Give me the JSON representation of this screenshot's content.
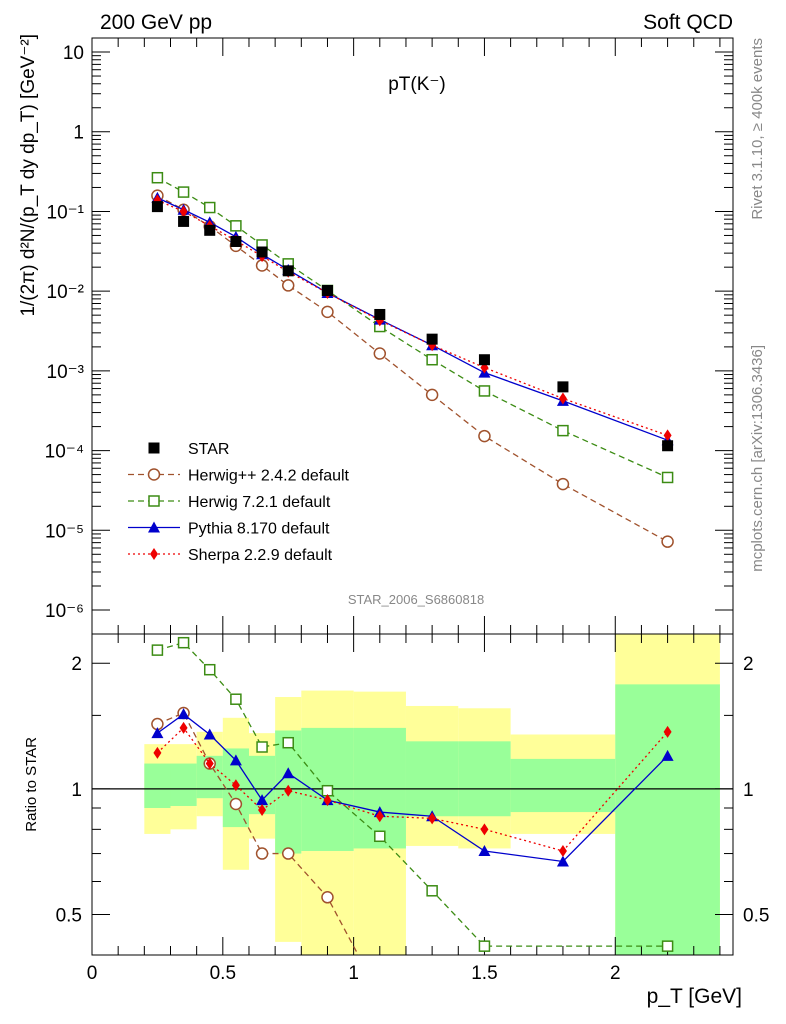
{
  "header": {
    "left": "200 GeV pp",
    "right": "Soft QCD",
    "side_top": "Rivet 3.1.10, ≥ 400k events",
    "side_bottom": "mcplots.cern.ch [arXiv:1306.3436]",
    "analysis": "STAR_2006_S6860818"
  },
  "colors": {
    "star": "#000000",
    "herwigpp": "#a0522d",
    "herwig7": "#3c8c14",
    "pythia": "#0000cc",
    "sherpa": "#ee0000",
    "band_yellow": "#ffff99",
    "band_green": "#99ff99"
  },
  "chart_data": [
    {
      "type": "line",
      "title": "pT(K⁻)",
      "yscale": "log",
      "ylabel": "1/(2π) d²N/(p_T dy dp_T) [GeV⁻²]",
      "xlim": [
        0,
        2.45
      ],
      "ylim": [
        5e-07,
        15
      ],
      "y_ticks": [
        "10⁻⁶",
        "10⁻⁵",
        "10⁻⁴",
        "10⁻³",
        "10⁻²",
        "10⁻¹",
        "1",
        "10"
      ],
      "legend_position": "bottom-left",
      "series": [
        {
          "key": "star",
          "name": "STAR",
          "style": "square-filled",
          "x": [
            0.25,
            0.35,
            0.45,
            0.55,
            0.65,
            0.75,
            0.9,
            1.1,
            1.3,
            1.5,
            1.8,
            2.2
          ],
          "y": [
            0.115,
            0.075,
            0.058,
            0.042,
            0.031,
            0.018,
            0.0102,
            0.0051,
            0.0025,
            0.00138,
            0.00063,
            0.000115
          ]
        },
        {
          "key": "herwigpp",
          "name": "Herwig++ 2.4.2 default",
          "style": "circle-open-dashed",
          "x": [
            0.25,
            0.35,
            0.45,
            0.55,
            0.65,
            0.75,
            0.9,
            1.1,
            1.3,
            1.5,
            1.8,
            2.2
          ],
          "y": [
            0.158,
            0.105,
            0.065,
            0.037,
            0.021,
            0.0118,
            0.0055,
            0.00165,
            0.0005,
            0.000152,
            3.8e-05,
            7.2e-06
          ]
        },
        {
          "key": "herwig7",
          "name": "Herwig 7.2.1 default",
          "style": "square-open-dashed",
          "x": [
            0.25,
            0.35,
            0.45,
            0.55,
            0.65,
            0.75,
            0.9,
            1.1,
            1.3,
            1.5,
            1.8,
            2.2
          ],
          "y": [
            0.265,
            0.175,
            0.112,
            0.066,
            0.038,
            0.022,
            0.0102,
            0.0036,
            0.00138,
            0.00056,
            0.000178,
            4.6e-05
          ]
        },
        {
          "key": "pythia",
          "name": "Pythia 8.170 default",
          "style": "triangle-filled-solid",
          "x": [
            0.25,
            0.35,
            0.45,
            0.55,
            0.65,
            0.75,
            0.9,
            1.1,
            1.3,
            1.5,
            1.8,
            2.2
          ],
          "y": [
            0.148,
            0.105,
            0.073,
            0.048,
            0.029,
            0.0185,
            0.0095,
            0.0044,
            0.0021,
            0.00095,
            0.00042,
            0.000135
          ]
        },
        {
          "key": "sherpa",
          "name": "Sherpa 2.2.9 default",
          "style": "diamond-filled-dotted",
          "x": [
            0.25,
            0.35,
            0.45,
            0.55,
            0.65,
            0.75,
            0.9,
            1.1,
            1.3,
            1.5,
            1.8,
            2.2
          ],
          "y": [
            0.138,
            0.1,
            0.066,
            0.043,
            0.0275,
            0.0175,
            0.0095,
            0.0043,
            0.0021,
            0.0011,
            0.00045,
            0.000155
          ]
        }
      ]
    },
    {
      "type": "line",
      "ylabel": "Ratio to STAR",
      "xlabel": "p_T [GeV]",
      "yscale": "log",
      "xlim": [
        0,
        2.45
      ],
      "ylim": [
        0.4,
        2.35
      ],
      "x_ticks": [
        "0",
        "0.5",
        "1",
        "1.5",
        "2"
      ],
      "y_ticks": [
        "0.5",
        "1",
        "2"
      ],
      "reference_line": 1,
      "bands": {
        "x_edges": [
          0.2,
          0.3,
          0.4,
          0.5,
          0.6,
          0.7,
          0.8,
          1.0,
          1.2,
          1.4,
          1.6,
          2.0,
          2.4
        ],
        "yellow_low": [
          0.78,
          0.8,
          0.86,
          0.64,
          0.76,
          0.43,
          0.4,
          0.4,
          0.73,
          0.72,
          0.78,
          0.4
        ],
        "yellow_high": [
          1.28,
          1.28,
          1.37,
          1.48,
          1.36,
          1.66,
          1.72,
          1.71,
          1.58,
          1.56,
          1.35,
          2.35
        ],
        "green_low": [
          0.9,
          0.91,
          0.95,
          0.81,
          0.87,
          0.7,
          0.71,
          0.72,
          0.86,
          0.86,
          0.88,
          0.4
        ],
        "green_high": [
          1.15,
          1.15,
          1.2,
          1.25,
          1.2,
          1.38,
          1.4,
          1.4,
          1.3,
          1.3,
          1.18,
          1.78
        ]
      },
      "series": [
        {
          "key": "herwigpp",
          "name": "Herwig++ 2.4.2 default",
          "style": "circle-open-dashed",
          "x": [
            0.25,
            0.35,
            0.45,
            0.55,
            0.65,
            0.75,
            0.9,
            1.1
          ],
          "y": [
            1.43,
            1.52,
            1.15,
            0.92,
            0.7,
            0.7,
            0.55,
            0.32
          ]
        },
        {
          "key": "herwig7",
          "name": "Herwig 7.2.1 default",
          "style": "square-open-dashed",
          "x": [
            0.25,
            0.35,
            0.45,
            0.55,
            0.65,
            0.75,
            0.9,
            1.1,
            1.3,
            1.5,
            2.2
          ],
          "y": [
            2.15,
            2.24,
            1.93,
            1.64,
            1.26,
            1.29,
            0.99,
            0.77,
            0.57,
            0.42,
            0.42
          ]
        },
        {
          "key": "pythia",
          "name": "Pythia 8.170 default",
          "style": "triangle-filled-solid",
          "x": [
            0.25,
            0.35,
            0.45,
            0.55,
            0.65,
            0.75,
            0.9,
            1.1,
            1.3,
            1.5,
            1.8,
            2.2
          ],
          "y": [
            1.36,
            1.51,
            1.35,
            1.17,
            0.94,
            1.09,
            0.94,
            0.88,
            0.86,
            0.71,
            0.67,
            1.2
          ]
        },
        {
          "key": "sherpa",
          "name": "Sherpa 2.2.9 default",
          "style": "diamond-filled-dotted",
          "x": [
            0.25,
            0.35,
            0.45,
            0.55,
            0.65,
            0.75,
            0.9,
            1.1,
            1.3,
            1.5,
            1.8,
            2.2
          ],
          "y": [
            1.22,
            1.4,
            1.15,
            1.02,
            0.89,
            0.99,
            0.94,
            0.86,
            0.85,
            0.8,
            0.71,
            1.37
          ]
        }
      ]
    }
  ]
}
